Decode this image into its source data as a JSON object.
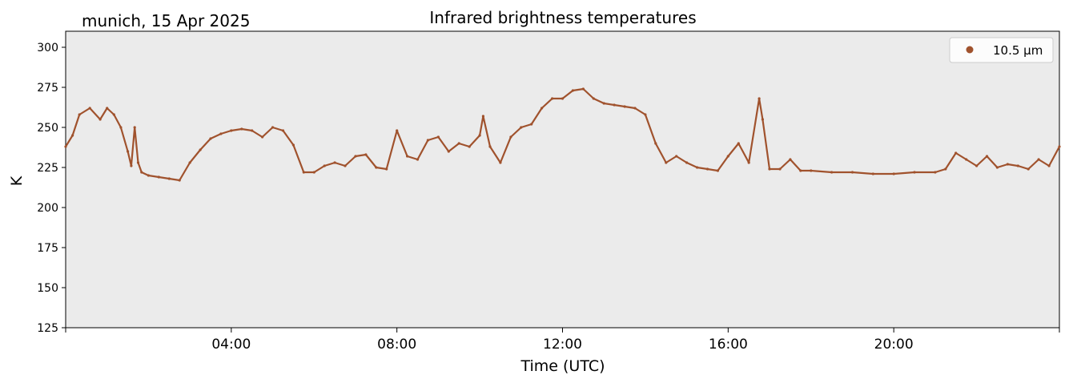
{
  "chart_data": {
    "type": "line",
    "title": "Infrared brightness temperatures",
    "subtitle": "munich, 15 Apr 2025",
    "xlabel": "Time (UTC)",
    "ylabel": "K",
    "xlim_hours": [
      0,
      24
    ],
    "ylim": [
      125,
      310
    ],
    "x_ticks": [
      {
        "hour": 4,
        "label": "04:00"
      },
      {
        "hour": 8,
        "label": "08:00"
      },
      {
        "hour": 12,
        "label": "12:00"
      },
      {
        "hour": 16,
        "label": "16:00"
      },
      {
        "hour": 20,
        "label": "20:00"
      }
    ],
    "y_ticks": [
      125,
      150,
      175,
      200,
      225,
      250,
      275,
      300
    ],
    "grid": false,
    "legend": {
      "placement": "top-right",
      "entries": [
        "10.5 µm"
      ]
    },
    "background_color": "#ebebeb",
    "series": [
      {
        "name": "10.5 µm",
        "color": "#a0522d",
        "points": [
          [
            "00:00",
            238
          ],
          [
            "00:10",
            245
          ],
          [
            "00:20",
            258
          ],
          [
            "00:35",
            262
          ],
          [
            "00:50",
            255
          ],
          [
            "01:00",
            262
          ],
          [
            "01:10",
            258
          ],
          [
            "01:20",
            250
          ],
          [
            "01:30",
            235
          ],
          [
            "01:35",
            226
          ],
          [
            "01:40",
            250
          ],
          [
            "01:45",
            228
          ],
          [
            "01:50",
            222
          ],
          [
            "02:00",
            220
          ],
          [
            "02:15",
            219
          ],
          [
            "02:30",
            218
          ],
          [
            "02:45",
            217
          ],
          [
            "03:00",
            228
          ],
          [
            "03:15",
            236
          ],
          [
            "03:30",
            243
          ],
          [
            "03:45",
            246
          ],
          [
            "04:00",
            248
          ],
          [
            "04:15",
            249
          ],
          [
            "04:30",
            248
          ],
          [
            "04:45",
            244
          ],
          [
            "05:00",
            250
          ],
          [
            "05:15",
            248
          ],
          [
            "05:30",
            239
          ],
          [
            "05:45",
            222
          ],
          [
            "06:00",
            222
          ],
          [
            "06:15",
            226
          ],
          [
            "06:30",
            228
          ],
          [
            "06:45",
            226
          ],
          [
            "07:00",
            232
          ],
          [
            "07:15",
            233
          ],
          [
            "07:30",
            225
          ],
          [
            "07:45",
            224
          ],
          [
            "08:00",
            248
          ],
          [
            "08:15",
            232
          ],
          [
            "08:30",
            230
          ],
          [
            "08:45",
            242
          ],
          [
            "09:00",
            244
          ],
          [
            "09:15",
            235
          ],
          [
            "09:30",
            240
          ],
          [
            "09:45",
            238
          ],
          [
            "10:00",
            245
          ],
          [
            "10:05",
            257
          ],
          [
            "10:15",
            238
          ],
          [
            "10:30",
            228
          ],
          [
            "10:45",
            244
          ],
          [
            "11:00",
            250
          ],
          [
            "11:15",
            252
          ],
          [
            "11:30",
            262
          ],
          [
            "11:45",
            268
          ],
          [
            "12:00",
            268
          ],
          [
            "12:15",
            273
          ],
          [
            "12:30",
            274
          ],
          [
            "12:45",
            268
          ],
          [
            "13:00",
            265
          ],
          [
            "13:15",
            264
          ],
          [
            "13:30",
            263
          ],
          [
            "13:45",
            262
          ],
          [
            "14:00",
            258
          ],
          [
            "14:15",
            240
          ],
          [
            "14:30",
            228
          ],
          [
            "14:45",
            232
          ],
          [
            "15:00",
            228
          ],
          [
            "15:15",
            225
          ],
          [
            "15:30",
            224
          ],
          [
            "15:45",
            223
          ],
          [
            "16:00",
            232
          ],
          [
            "16:15",
            240
          ],
          [
            "16:30",
            228
          ],
          [
            "16:45",
            268
          ],
          [
            "16:50",
            255
          ],
          [
            "17:00",
            224
          ],
          [
            "17:15",
            224
          ],
          [
            "17:30",
            230
          ],
          [
            "17:45",
            223
          ],
          [
            "18:00",
            223
          ],
          [
            "18:30",
            222
          ],
          [
            "19:00",
            222
          ],
          [
            "19:30",
            221
          ],
          [
            "20:00",
            221
          ],
          [
            "20:30",
            222
          ],
          [
            "21:00",
            222
          ],
          [
            "21:15",
            224
          ],
          [
            "21:30",
            234
          ],
          [
            "21:45",
            230
          ],
          [
            "22:00",
            226
          ],
          [
            "22:15",
            232
          ],
          [
            "22:30",
            225
          ],
          [
            "22:45",
            227
          ],
          [
            "23:00",
            226
          ],
          [
            "23:15",
            224
          ],
          [
            "23:30",
            230
          ],
          [
            "23:45",
            226
          ],
          [
            "24:00",
            238
          ]
        ]
      }
    ]
  }
}
